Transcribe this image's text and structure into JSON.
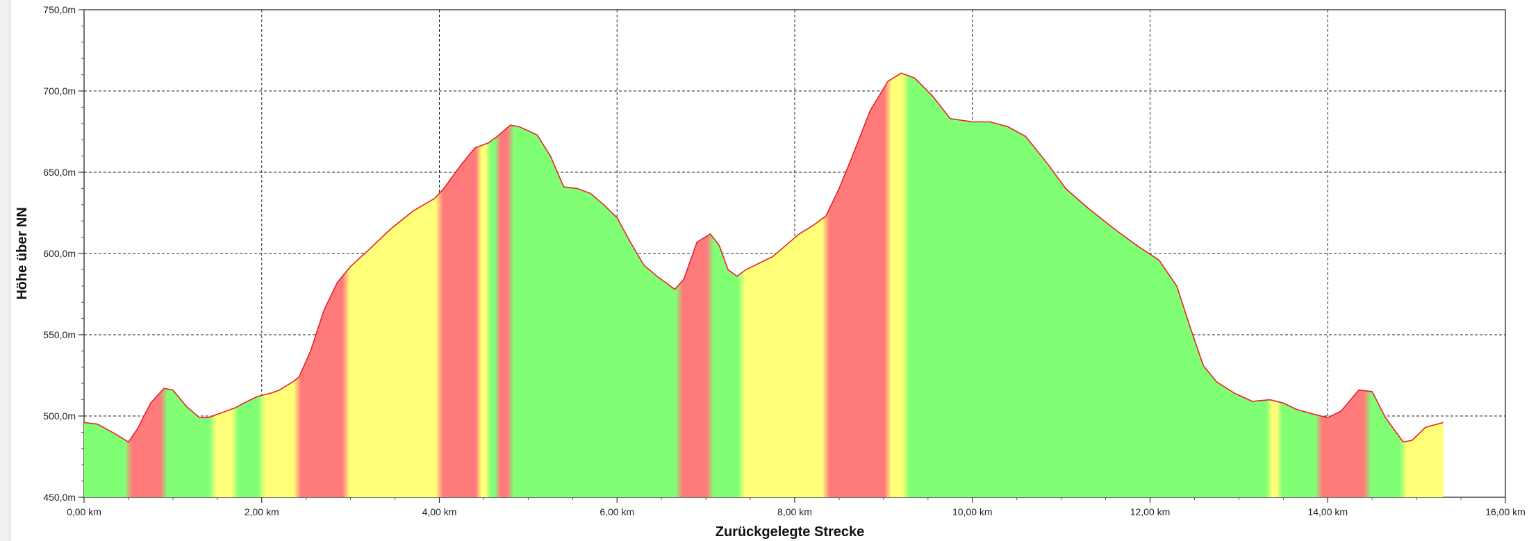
{
  "chart_data": {
    "type": "area",
    "title": "",
    "xlabel": "Zurückgelegte Strecke",
    "ylabel": "Höhe über NN",
    "xlim": [
      0,
      16
    ],
    "ylim": [
      450,
      750
    ],
    "x_ticks": [
      0,
      2,
      4,
      6,
      8,
      10,
      12,
      14,
      16
    ],
    "y_ticks": [
      450,
      500,
      550,
      600,
      650,
      700,
      750
    ],
    "x_tick_labels": [
      "0,00 km",
      "2,00 km",
      "4,00 km",
      "6,00 km",
      "8,00 km",
      "10,00 km",
      "12,00 km",
      "14,00 km",
      "16,00 km"
    ],
    "y_tick_labels": [
      "450,0m",
      "500,0m",
      "550,0m",
      "600,0m",
      "650,0m",
      "700,0m",
      "750,0m"
    ],
    "grid": true,
    "line_color": "#e8202a",
    "colors": {
      "flat": "#80ff75",
      "medium": "#ffff78",
      "steep": "#ff7b7b"
    },
    "series": [
      {
        "x": [
          0,
          0.15,
          0.35,
          0.5,
          0.6,
          0.75,
          0.9,
          1.0,
          1.15,
          1.3,
          1.4,
          1.55,
          1.7,
          1.8,
          1.95,
          2.1,
          2.2,
          2.35,
          2.42,
          2.55,
          2.7,
          2.85,
          3.0,
          3.2,
          3.45,
          3.7,
          3.95,
          4.05,
          4.25,
          4.4,
          4.55,
          4.65,
          4.8,
          4.9,
          5.1,
          5.25,
          5.4,
          5.55,
          5.7,
          5.85,
          6.0,
          6.15,
          6.3,
          6.45,
          6.65,
          6.75,
          6.9,
          7.05,
          7.15,
          7.25,
          7.35,
          7.45,
          7.6,
          7.75,
          7.9,
          8.05,
          8.2,
          8.35,
          8.5,
          8.65,
          8.85,
          9.05,
          9.2,
          9.35,
          9.55,
          9.75,
          10.0,
          10.2,
          10.4,
          10.6,
          10.85,
          11.05,
          11.3,
          11.6,
          11.85,
          12.1,
          12.3,
          12.45,
          12.6,
          12.75,
          12.95,
          13.15,
          13.35,
          13.5,
          13.65,
          13.85,
          14.0,
          14.15,
          14.35,
          14.5,
          14.65,
          14.85,
          14.95,
          15.1,
          15.3
        ],
        "y": [
          496,
          495,
          489,
          484,
          492,
          508,
          517,
          516,
          506,
          499,
          499,
          502,
          505,
          508,
          512,
          514,
          516,
          521,
          524,
          540,
          565,
          582,
          592,
          602,
          615,
          626,
          634,
          640,
          655,
          665,
          668,
          672,
          679,
          678,
          673,
          660,
          641,
          640,
          637,
          630,
          622,
          607,
          593,
          586,
          578,
          584,
          607,
          612,
          605,
          590,
          586,
          590,
          594,
          598,
          605,
          612,
          617,
          623,
          640,
          660,
          688,
          706,
          711,
          708,
          697,
          683,
          681,
          681,
          678,
          672,
          655,
          640,
          628,
          615,
          605,
          596,
          580,
          555,
          531,
          521,
          514,
          509,
          510,
          508,
          504,
          501,
          499,
          503,
          516,
          515,
          499,
          484,
          485,
          493,
          496
        ]
      }
    ],
    "slope_bands": [
      {
        "from": 0.0,
        "to": 0.5,
        "grade": "flat"
      },
      {
        "from": 0.5,
        "to": 0.9,
        "grade": "steep"
      },
      {
        "from": 0.9,
        "to": 1.45,
        "grade": "flat"
      },
      {
        "from": 1.45,
        "to": 1.7,
        "grade": "medium"
      },
      {
        "from": 1.7,
        "to": 2.0,
        "grade": "flat"
      },
      {
        "from": 2.0,
        "to": 2.4,
        "grade": "medium"
      },
      {
        "from": 2.4,
        "to": 2.95,
        "grade": "steep"
      },
      {
        "from": 2.95,
        "to": 4.0,
        "grade": "medium"
      },
      {
        "from": 4.0,
        "to": 4.45,
        "grade": "steep"
      },
      {
        "from": 4.45,
        "to": 4.55,
        "grade": "medium"
      },
      {
        "from": 4.55,
        "to": 4.65,
        "grade": "flat"
      },
      {
        "from": 4.65,
        "to": 4.8,
        "grade": "steep"
      },
      {
        "from": 4.8,
        "to": 6.7,
        "grade": "flat"
      },
      {
        "from": 6.7,
        "to": 7.05,
        "grade": "steep"
      },
      {
        "from": 7.05,
        "to": 7.4,
        "grade": "flat"
      },
      {
        "from": 7.4,
        "to": 7.85,
        "grade": "medium"
      },
      {
        "from": 7.85,
        "to": 8.35,
        "grade": "medium"
      },
      {
        "from": 8.35,
        "to": 9.05,
        "grade": "steep"
      },
      {
        "from": 9.05,
        "to": 9.25,
        "grade": "medium"
      },
      {
        "from": 9.25,
        "to": 13.35,
        "grade": "flat"
      },
      {
        "from": 13.35,
        "to": 13.45,
        "grade": "medium"
      },
      {
        "from": 13.45,
        "to": 13.9,
        "grade": "flat"
      },
      {
        "from": 13.9,
        "to": 14.45,
        "grade": "steep"
      },
      {
        "from": 14.45,
        "to": 14.85,
        "grade": "flat"
      },
      {
        "from": 14.85,
        "to": 15.3,
        "grade": "medium"
      }
    ]
  }
}
